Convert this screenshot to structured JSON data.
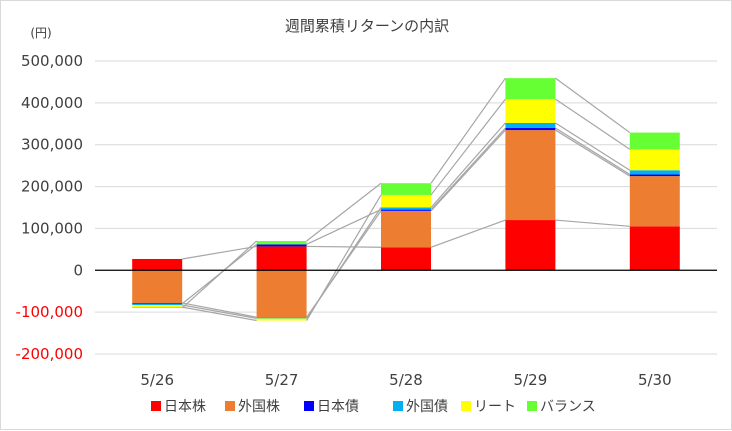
{
  "chart_data": {
    "type": "bar",
    "stacked": true,
    "title": "週間累積リターンの内訳",
    "unit_label": "(円)",
    "categories": [
      "5/26",
      "5/27",
      "5/28",
      "5/29",
      "5/30"
    ],
    "ylim": [
      -200000,
      500000
    ],
    "yticks": [
      {
        "value": 500000,
        "label": "500,000"
      },
      {
        "value": 400000,
        "label": "400,000"
      },
      {
        "value": 300000,
        "label": "300,000"
      },
      {
        "value": 200000,
        "label": "200,000"
      },
      {
        "value": 100000,
        "label": "100,000"
      },
      {
        "value": 0,
        "label": "0"
      },
      {
        "value": -100000,
        "label": "-100,000"
      },
      {
        "value": -200000,
        "label": "-200,000"
      }
    ],
    "grid": true,
    "legend_position": "bottom",
    "series_lines": true,
    "series": [
      {
        "name": "日本株",
        "color": "#ff0000",
        "values": [
          27000,
          57000,
          55000,
          120000,
          105000
        ]
      },
      {
        "name": "外国株",
        "color": "#ed7d31",
        "values": [
          -78000,
          -112000,
          87000,
          215000,
          120000
        ]
      },
      {
        "name": "日本債",
        "color": "#0000ff",
        "values": [
          -2000,
          5000,
          3000,
          5000,
          4000
        ]
      },
      {
        "name": "外国債",
        "color": "#00b0f0",
        "values": [
          -3000,
          -3000,
          5000,
          12000,
          10000
        ]
      },
      {
        "name": "リート",
        "color": "#ffff00",
        "values": [
          -5000,
          -5000,
          30000,
          57000,
          50000
        ]
      },
      {
        "name": "バランス",
        "color": "#66ff33",
        "values": [
          -2000,
          8000,
          28000,
          50000,
          40000
        ]
      }
    ]
  }
}
